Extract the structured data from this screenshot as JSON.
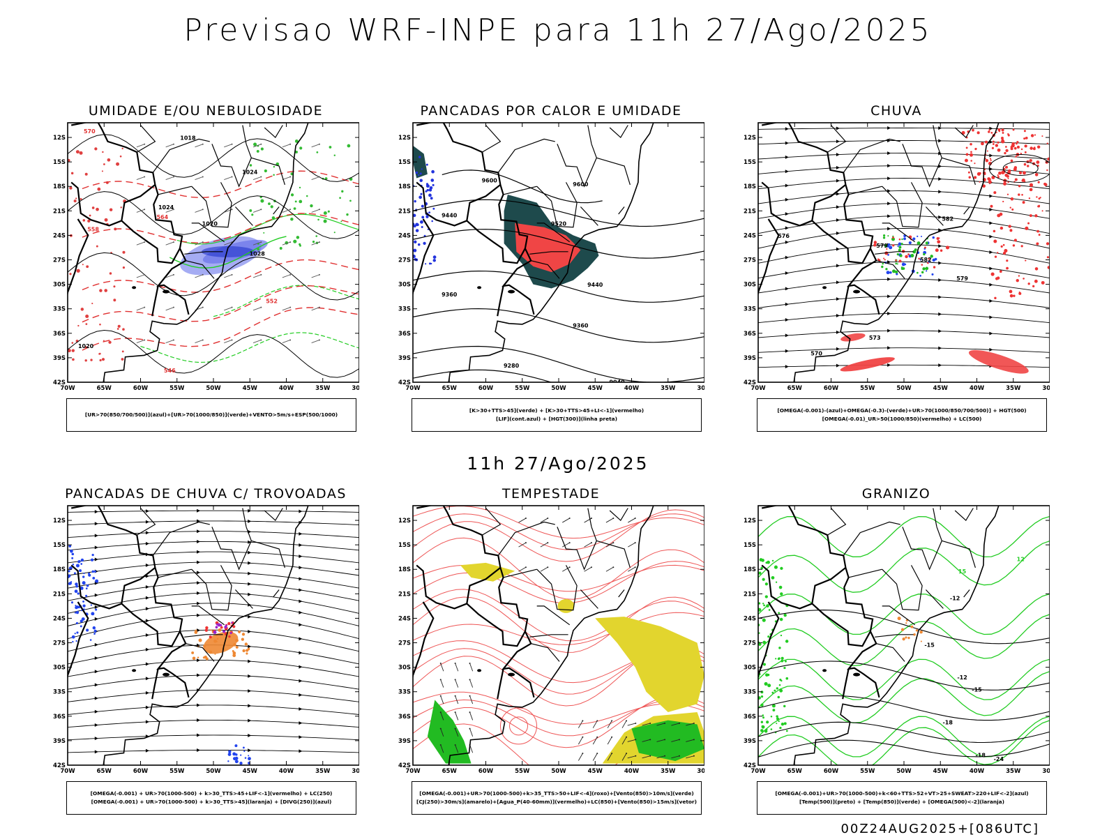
{
  "page": {
    "title": "Previsao WRF-INPE  para 11h 27/Ago/2025",
    "mid_title": "11h 27/Ago/2025",
    "run_label": "00Z24AUG2025+[086UTC]"
  },
  "axes": {
    "lat_labels": [
      "12S",
      "15S",
      "18S",
      "21S",
      "24S",
      "27S",
      "30S",
      "33S",
      "36S",
      "39S",
      "42S"
    ],
    "lon_labels": [
      "70W",
      "65W",
      "60W",
      "55W",
      "50W",
      "45W",
      "40W",
      "35W",
      "30W"
    ]
  },
  "panels": [
    {
      "id": "umidade",
      "title": "UMIDADE E/OU NEBULOSIDADE",
      "legend": [
        "[UR>70(850/700/500)](azul)+[UR>70(1000/850)](verde)+VENTO>5m/s+ESP(500/1000)"
      ],
      "contour_labels": [
        {
          "text": "1018",
          "color": "#000000"
        },
        {
          "text": "1024",
          "color": "#000000"
        },
        {
          "text": "1024",
          "color": "#000000"
        },
        {
          "text": "1020",
          "color": "#000000"
        },
        {
          "text": "1028",
          "color": "#000000"
        },
        {
          "text": "1020",
          "color": "#000000"
        },
        {
          "text": "570",
          "color": "#e03030"
        },
        {
          "text": "564",
          "color": "#e03030"
        },
        {
          "text": "558",
          "color": "#e03030"
        },
        {
          "text": "552",
          "color": "#e03030"
        },
        {
          "text": "546",
          "color": "#e03030"
        }
      ]
    },
    {
      "id": "pancadas-calor",
      "title": "PANCADAS POR CALOR E UMIDADE",
      "legend": [
        "[K>30+TTS>45](verde) + [K>30+TTS>45+LI<-1](vermelho)",
        "[LIF](cont.azul) + [HGT(300)](linha preta)"
      ],
      "contour_labels": [
        {
          "text": "9600",
          "color": "#000000"
        },
        {
          "text": "9600",
          "color": "#000000"
        },
        {
          "text": "9520",
          "color": "#000000"
        },
        {
          "text": "9440",
          "color": "#000000"
        },
        {
          "text": "9440",
          "color": "#000000"
        },
        {
          "text": "9360",
          "color": "#000000"
        },
        {
          "text": "9360",
          "color": "#000000"
        },
        {
          "text": "9280",
          "color": "#000000"
        },
        {
          "text": "9040",
          "color": "#000000"
        }
      ]
    },
    {
      "id": "chuva",
      "title": "CHUVA",
      "legend": [
        "[OMEGA(-0.001)-(azul)+OMEGA(-0.3)-(verde)+UR>70(1000/850/700/500)] + HGT(500)",
        "[OMEGA(-0.01)_UR>50(1000/850)(vermelho) + LC(500)"
      ],
      "contour_labels": [
        {
          "text": "582",
          "color": "#000000"
        },
        {
          "text": "582",
          "color": "#000000"
        },
        {
          "text": "579",
          "color": "#000000"
        },
        {
          "text": "579",
          "color": "#000000"
        },
        {
          "text": "576",
          "color": "#000000"
        },
        {
          "text": "573",
          "color": "#000000"
        },
        {
          "text": "570",
          "color": "#000000"
        }
      ]
    },
    {
      "id": "pancadas-trovoadas",
      "title": "PANCADAS DE CHUVA C/ TROVOADAS",
      "legend": [
        "[OMEGA(-0.001) + UR>70(1000-500) + k>30_TTS>45+LIF<-1](vermelho) + LC(250)",
        "[OMEGA(-0.001) + UR>70(1000-500) + k>30_TTS>45](laranja) + [DIVG(250)](azul)"
      ],
      "contour_labels": []
    },
    {
      "id": "tempestade",
      "title": "TEMPESTADE",
      "legend": [
        "[OMEGA(-0.001)+UR>70(1000-500)+k>35_TTS>50+LIF<-4](roxo)+[Vento(850)>10m/s](verde)",
        "[CJ(250)>30m/s](amarelo)+[Agua_P(40-60mm)](vermelho)+LC(850)+[Vento(850)>15m/s](vetor)"
      ],
      "contour_labels": []
    },
    {
      "id": "granizo",
      "title": "GRANIZO",
      "legend": [
        "[OMEGA(-0.001)+UR>70(1000-500)+k<60+TTS>52+VT>25+SWEAT>220+LIF<-2](azul)",
        "[Temp(500)](preto) + [Temp(850)](verde) + [OMEGA(500)<-2](laranja)"
      ],
      "contour_labels": [
        {
          "text": "-12",
          "color": "#000000"
        },
        {
          "text": "-12",
          "color": "#000000"
        },
        {
          "text": "-15",
          "color": "#000000"
        },
        {
          "text": "-18",
          "color": "#000000"
        },
        {
          "text": "-18",
          "color": "#000000"
        },
        {
          "text": "-24",
          "color": "#000000"
        },
        {
          "text": "12",
          "color": "#22cc22"
        },
        {
          "text": "15",
          "color": "#22cc22"
        },
        {
          "text": "-15",
          "color": "#000000"
        }
      ]
    }
  ]
}
